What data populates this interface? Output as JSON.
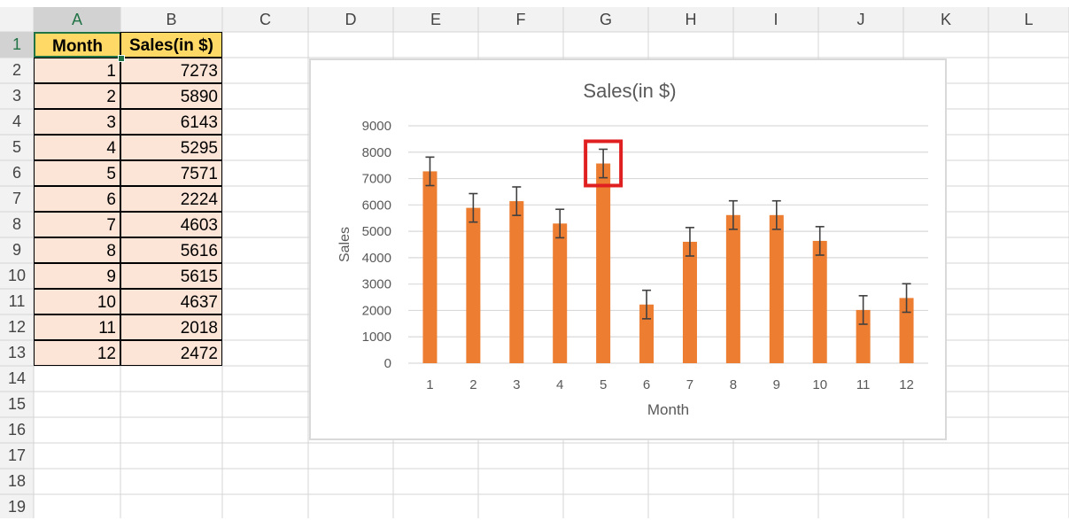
{
  "sheet": {
    "columns": [
      "A",
      "B",
      "C",
      "D",
      "E",
      "F",
      "G",
      "H",
      "I",
      "J",
      "K",
      "L"
    ],
    "rows": [
      "1",
      "2",
      "3",
      "4",
      "5",
      "6",
      "7",
      "8",
      "9",
      "10",
      "11",
      "12",
      "13",
      "14",
      "15",
      "16",
      "17",
      "18",
      "19"
    ],
    "selected_column": "A",
    "selected_row": "1",
    "header": {
      "month": "Month",
      "sales": "Sales(in $)"
    },
    "table": [
      {
        "month": "1",
        "sales": "7273"
      },
      {
        "month": "2",
        "sales": "5890"
      },
      {
        "month": "3",
        "sales": "6143"
      },
      {
        "month": "4",
        "sales": "5295"
      },
      {
        "month": "5",
        "sales": "7571"
      },
      {
        "month": "6",
        "sales": "2224"
      },
      {
        "month": "7",
        "sales": "4603"
      },
      {
        "month": "8",
        "sales": "5616"
      },
      {
        "month": "9",
        "sales": "5615"
      },
      {
        "month": "10",
        "sales": "4637"
      },
      {
        "month": "11",
        "sales": "2018"
      },
      {
        "month": "12",
        "sales": "2472"
      }
    ]
  },
  "colors": {
    "bar": "#ed7d31",
    "header_fill": "#ffd966",
    "data_fill": "#fce4d6",
    "highlight_box": "#e02020",
    "gridline": "#d9d9d9",
    "selected_header_text": "#217346"
  },
  "chart_data": {
    "type": "bar",
    "title": "Sales(in $)",
    "xlabel": "Month",
    "ylabel": "Sales",
    "categories": [
      "1",
      "2",
      "3",
      "4",
      "5",
      "6",
      "7",
      "8",
      "9",
      "10",
      "11",
      "12"
    ],
    "values": [
      7273,
      5890,
      6143,
      5295,
      7571,
      2224,
      4603,
      5616,
      5615,
      4637,
      2018,
      2472
    ],
    "error_bars": {
      "type": "symmetric",
      "value": 540
    },
    "ylim": [
      0,
      9000
    ],
    "yticks": [
      "0",
      "1000",
      "2000",
      "3000",
      "4000",
      "5000",
      "6000",
      "7000",
      "8000",
      "9000"
    ],
    "grid": true,
    "legend": "none",
    "highlighted_category": "5"
  }
}
